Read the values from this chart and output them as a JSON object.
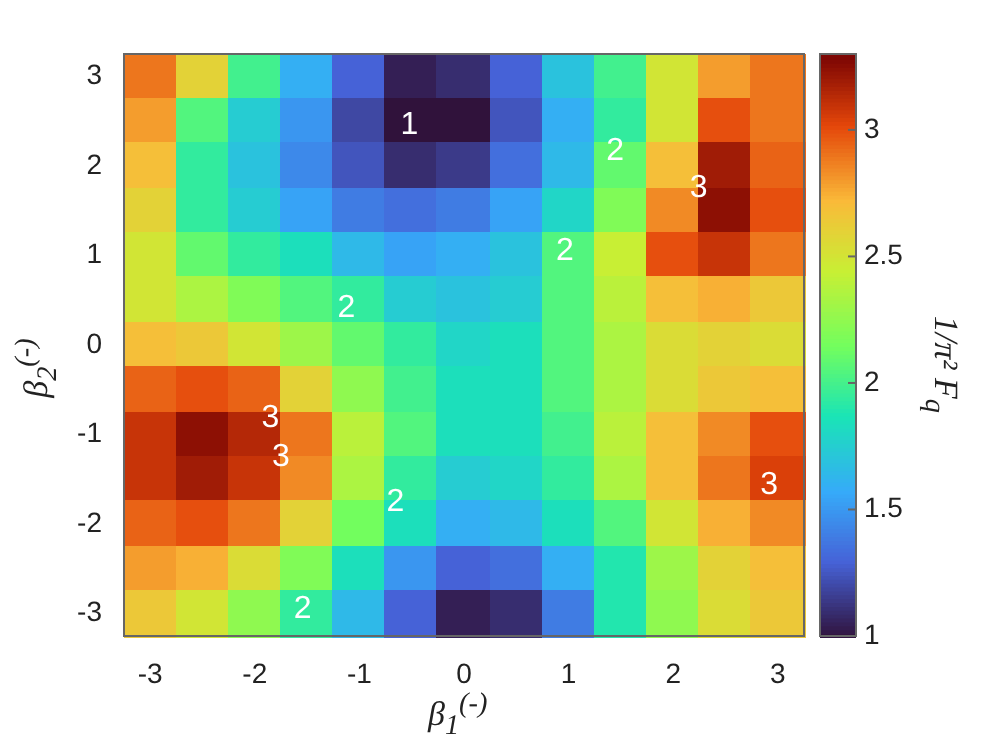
{
  "chart_data": {
    "type": "heatmap",
    "xlabel": "β$_{1}$$^{(-)}$",
    "ylabel": "β$_{2}$$^{(-)}$",
    "clabel": "1/π² F$_{q}$",
    "categories": [
      "-3",
      null,
      "-2",
      null,
      "-1",
      null,
      "0",
      null,
      "1",
      null,
      "2",
      null,
      "3"
    ],
    "y_categories": [
      "3",
      null,
      "2",
      null,
      "1",
      null,
      "0",
      null,
      "-1",
      null,
      "-2",
      null,
      "-3"
    ],
    "cells": [
      [
        2.9,
        2.6,
        2.0,
        1.6,
        1.3,
        1.05,
        1.1,
        1.3,
        1.7,
        2.0,
        2.5,
        2.8,
        2.9
      ],
      [
        2.8,
        2.05,
        1.75,
        1.5,
        1.2,
        0.98,
        1.0,
        1.25,
        1.6,
        1.95,
        2.5,
        3.0,
        2.9
      ],
      [
        2.7,
        1.95,
        1.7,
        1.45,
        1.25,
        1.1,
        1.15,
        1.35,
        1.65,
        2.1,
        2.7,
        3.2,
        2.95
      ],
      [
        2.6,
        1.95,
        1.75,
        1.55,
        1.4,
        1.35,
        1.4,
        1.55,
        1.8,
        2.2,
        2.85,
        3.25,
        3.0
      ],
      [
        2.5,
        2.1,
        1.95,
        1.85,
        1.65,
        1.55,
        1.6,
        1.7,
        2.05,
        2.45,
        3.0,
        3.1,
        2.9
      ],
      [
        2.5,
        2.35,
        2.2,
        2.05,
        1.95,
        1.75,
        1.7,
        1.75,
        2.05,
        2.4,
        2.7,
        2.75,
        2.65
      ],
      [
        2.7,
        2.65,
        2.5,
        2.3,
        2.1,
        1.95,
        1.8,
        1.85,
        2.05,
        2.35,
        2.55,
        2.6,
        2.55
      ],
      [
        2.95,
        3.0,
        2.95,
        2.6,
        2.25,
        2.0,
        1.85,
        1.85,
        2.05,
        2.35,
        2.55,
        2.65,
        2.7
      ],
      [
        3.1,
        3.25,
        3.15,
        2.9,
        2.4,
        2.05,
        1.85,
        1.85,
        2.0,
        2.4,
        2.7,
        2.85,
        3.0
      ],
      [
        3.1,
        3.2,
        3.1,
        2.85,
        2.35,
        1.95,
        1.75,
        1.8,
        1.95,
        2.35,
        2.7,
        2.9,
        3.05
      ],
      [
        2.95,
        3.0,
        2.9,
        2.6,
        2.15,
        1.85,
        1.6,
        1.65,
        1.85,
        2.05,
        2.5,
        2.75,
        2.85
      ],
      [
        2.8,
        2.75,
        2.55,
        2.2,
        1.85,
        1.5,
        1.3,
        1.35,
        1.6,
        1.9,
        2.3,
        2.6,
        2.7
      ],
      [
        2.65,
        2.5,
        2.25,
        1.95,
        1.65,
        1.3,
        1.05,
        1.1,
        1.4,
        1.9,
        2.25,
        2.55,
        2.65
      ]
    ],
    "clim": [
      1,
      3.3
    ],
    "cticks": [
      1,
      1.5,
      2,
      2.5,
      3
    ],
    "annotations": [
      "1",
      "2",
      "2",
      "2",
      "2",
      "2",
      "3",
      "3",
      "3",
      "3"
    ]
  }
}
